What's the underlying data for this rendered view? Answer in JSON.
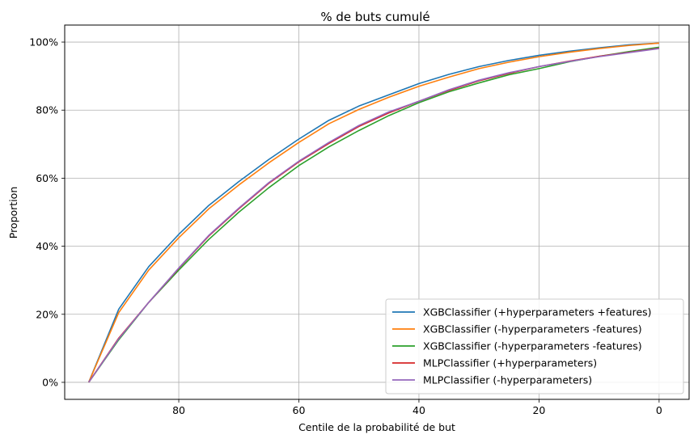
{
  "chart_data": {
    "type": "line",
    "title": "% de buts cumulé",
    "xlabel": "Centile de la probabilité de but",
    "ylabel": "Proportion",
    "x_inverted": true,
    "xlim": [
      99,
      -5
    ],
    "ylim": [
      -0.05,
      1.05
    ],
    "x_ticks": [
      80,
      60,
      40,
      20,
      0
    ],
    "x_tick_labels": [
      "80",
      "60",
      "40",
      "20",
      "0"
    ],
    "y_ticks": [
      0,
      0.2,
      0.4,
      0.6,
      0.8,
      1.0
    ],
    "y_tick_labels": [
      "0%",
      "20%",
      "40%",
      "60%",
      "80%",
      "100%"
    ],
    "grid": true,
    "legend_position": "lower-right",
    "x": [
      95,
      90,
      85,
      80,
      75,
      70,
      65,
      60,
      55,
      50,
      45,
      40,
      35,
      30,
      25,
      20,
      15,
      10,
      5,
      0
    ],
    "series": [
      {
        "name": "XGBClassifier (+hyperparameters +features)",
        "color": "#1f77b4",
        "values": [
          0,
          0.215,
          0.34,
          0.435,
          0.52,
          0.59,
          0.655,
          0.715,
          0.77,
          0.812,
          0.845,
          0.878,
          0.905,
          0.928,
          0.946,
          0.961,
          0.973,
          0.983,
          0.992,
          0.997
        ]
      },
      {
        "name": "XGBClassifier (-hyperparameters -features)",
        "color": "#ff7f0e",
        "values": [
          0,
          0.205,
          0.33,
          0.425,
          0.51,
          0.58,
          0.645,
          0.705,
          0.76,
          0.802,
          0.838,
          0.87,
          0.897,
          0.922,
          0.941,
          0.957,
          0.97,
          0.981,
          0.99,
          0.997
        ]
      },
      {
        "name": "XGBClassifier (-hyperparameters -features)",
        "color": "#2ca02c",
        "values": [
          0,
          0.125,
          0.235,
          0.33,
          0.42,
          0.5,
          0.572,
          0.637,
          0.692,
          0.74,
          0.784,
          0.822,
          0.854,
          0.88,
          0.904,
          0.922,
          0.942,
          0.958,
          0.972,
          0.985
        ]
      },
      {
        "name": "MLPClassifier (+hyperparameters)",
        "color": "#d62728",
        "values": [
          0,
          0.13,
          0.235,
          0.335,
          0.43,
          0.51,
          0.585,
          0.648,
          0.702,
          0.752,
          0.792,
          0.826,
          0.858,
          0.886,
          0.908,
          0.928,
          0.944,
          0.958,
          0.97,
          0.982
        ]
      },
      {
        "name": "MLPClassifier (-hyperparameters)",
        "color": "#9467bd",
        "values": [
          0,
          0.128,
          0.235,
          0.336,
          0.432,
          0.512,
          0.587,
          0.65,
          0.705,
          0.755,
          0.795,
          0.826,
          0.86,
          0.888,
          0.91,
          0.928,
          0.943,
          0.957,
          0.969,
          0.981
        ]
      }
    ]
  }
}
